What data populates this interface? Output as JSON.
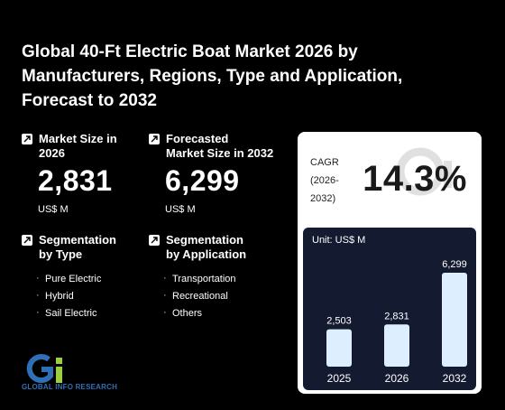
{
  "title": "Global 40-Ft Electric Boat Market 2026 by Manufacturers, Regions, Type and Application, Forecast to 2032",
  "metrics": {
    "market_size": {
      "label_line1": "Market Size in",
      "label_line2": "2026",
      "value": "2,831",
      "unit": "US$ M"
    },
    "forecast": {
      "label_line1": "Forecasted",
      "label_line2": "Market Size in 2032",
      "value": "6,299",
      "unit": "US$ M"
    }
  },
  "segmentation_type": {
    "label_line1": "Segmentation",
    "label_line2": "by Type",
    "items": [
      "Pure Electric",
      "Hybrid",
      "Sail Electric"
    ]
  },
  "segmentation_application": {
    "label_line1": "Segmentation",
    "label_line2": "by Application",
    "items": [
      "Transportation",
      "Recreational",
      "Others"
    ]
  },
  "cagr": {
    "label_line1": "CAGR",
    "label_line2": "(2026-",
    "label_line3": "2032)",
    "value": "14.3%"
  },
  "chart_data": {
    "type": "bar",
    "unit_label": "Unit: US$ M",
    "categories": [
      "2025",
      "2026",
      "2032"
    ],
    "values": [
      2503,
      2831,
      6299
    ],
    "value_labels": [
      "2,503",
      "2,831",
      "6,299"
    ],
    "ylim": [
      0,
      6299
    ]
  },
  "logo_text": "GLOBAL INFO RESEARCH",
  "colors": {
    "background": "#000000",
    "bar": "#ddeeff",
    "panel": "#141b30",
    "logo_blue": "#2f6fb5",
    "logo_green": "#9bd03a"
  }
}
